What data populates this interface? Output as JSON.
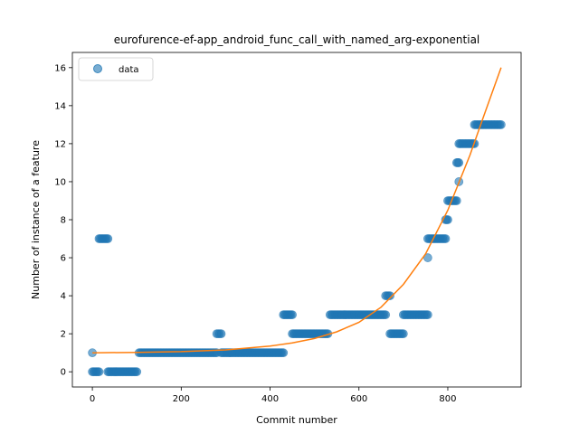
{
  "chart_data": {
    "type": "scatter",
    "title": "eurofurence-ef-app_android_func_call_with_named_arg-exponential",
    "xlabel": "Commit number",
    "ylabel": "Number of instance of a feature",
    "xlim": [
      -45,
      965
    ],
    "ylim": [
      -0.8,
      16.8
    ],
    "xticks": [
      0,
      200,
      400,
      600,
      800
    ],
    "yticks": [
      0,
      2,
      4,
      6,
      8,
      10,
      12,
      14,
      16
    ],
    "grid": false,
    "legend": {
      "position": "top-left",
      "entries": [
        "data"
      ]
    },
    "colors": {
      "data": "#1f77b4",
      "fit": "#ff7f0e"
    },
    "series": [
      {
        "name": "data",
        "kind": "scatter",
        "segments": [
          {
            "x_start": 0,
            "x_end": 0,
            "y": 1
          },
          {
            "x_start": 0,
            "x_end": 15,
            "y": 0
          },
          {
            "x_start": 15,
            "x_end": 35,
            "y": 7
          },
          {
            "x_start": 35,
            "x_end": 100,
            "y": 0
          },
          {
            "x_start": 105,
            "x_end": 280,
            "y": 1
          },
          {
            "x_start": 280,
            "x_end": 290,
            "y": 2
          },
          {
            "x_start": 290,
            "x_end": 430,
            "y": 1
          },
          {
            "x_start": 430,
            "x_end": 450,
            "y": 3
          },
          {
            "x_start": 450,
            "x_end": 530,
            "y": 2
          },
          {
            "x_start": 535,
            "x_end": 660,
            "y": 3
          },
          {
            "x_start": 660,
            "x_end": 670,
            "y": 4
          },
          {
            "x_start": 670,
            "x_end": 700,
            "y": 2
          },
          {
            "x_start": 700,
            "x_end": 755,
            "y": 3
          },
          {
            "x_start": 755,
            "x_end": 755,
            "y": 6
          },
          {
            "x_start": 755,
            "x_end": 795,
            "y": 7
          },
          {
            "x_start": 795,
            "x_end": 800,
            "y": 8
          },
          {
            "x_start": 800,
            "x_end": 820,
            "y": 9
          },
          {
            "x_start": 820,
            "x_end": 825,
            "y": 11
          },
          {
            "x_start": 825,
            "x_end": 825,
            "y": 10
          },
          {
            "x_start": 825,
            "x_end": 860,
            "y": 12
          },
          {
            "x_start": 860,
            "x_end": 920,
            "y": 13
          }
        ]
      },
      {
        "name": "fit",
        "kind": "line",
        "points": [
          [
            0,
            1.0
          ],
          [
            100,
            1.02
          ],
          [
            200,
            1.06
          ],
          [
            300,
            1.15
          ],
          [
            400,
            1.35
          ],
          [
            450,
            1.52
          ],
          [
            500,
            1.75
          ],
          [
            550,
            2.1
          ],
          [
            600,
            2.6
          ],
          [
            650,
            3.4
          ],
          [
            700,
            4.6
          ],
          [
            750,
            6.2
          ],
          [
            800,
            8.5
          ],
          [
            850,
            11.4
          ],
          [
            880,
            13.4
          ],
          [
            920,
            16.0
          ]
        ]
      }
    ]
  }
}
